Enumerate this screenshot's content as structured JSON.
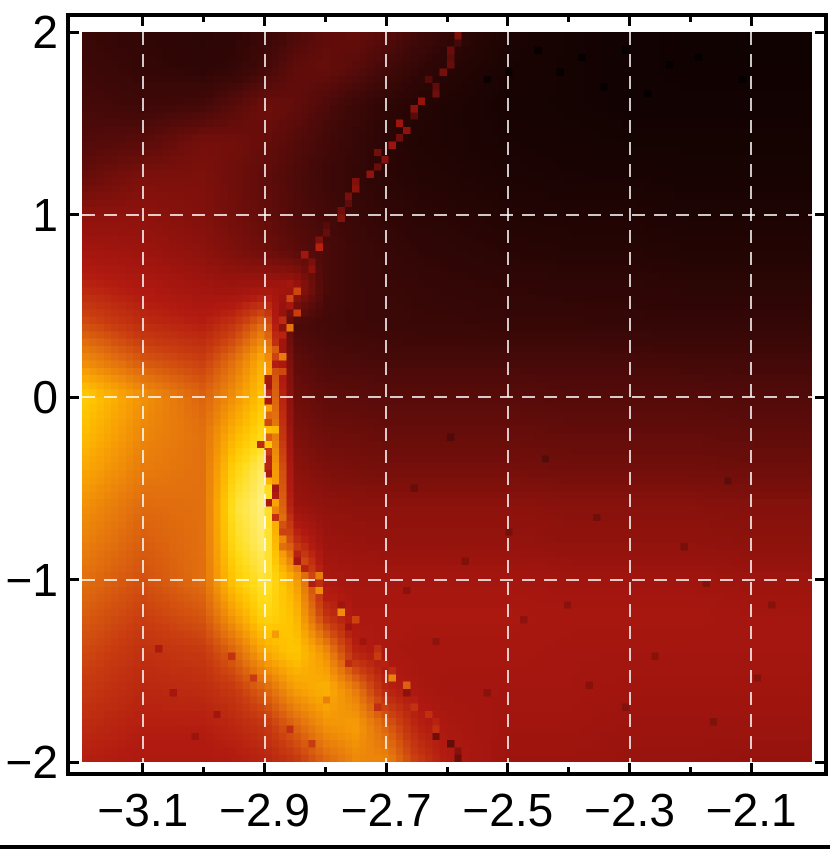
{
  "figure": {
    "background": "#ffffff",
    "frame_color": "#000000",
    "bottom_rule_color": "#000000"
  },
  "chart_data": {
    "type": "heatmap",
    "title": "",
    "xlabel": "",
    "ylabel": "",
    "xlim": [
      -3.2,
      -2.0
    ],
    "ylim": [
      -2,
      2
    ],
    "grid": true,
    "grid_color": "rgba(255,255,255,0.78)",
    "x_ticks": {
      "values": [
        -3.1,
        -2.9,
        -2.7,
        -2.5,
        -2.3,
        -2.1
      ],
      "labels": [
        "−3.1",
        "−2.9",
        "−2.7",
        "−2.5",
        "−2.3",
        "−2.1"
      ],
      "minor_values": [
        -3.0,
        -2.8,
        -2.6,
        -2.4,
        -2.2
      ]
    },
    "y_ticks": {
      "values": [
        2,
        1,
        0,
        -1,
        -2
      ],
      "labels": [
        "2",
        "1",
        "0",
        "−1",
        "−2"
      ],
      "minor_values": []
    },
    "grid_x_values": [
      -3.1,
      -2.9,
      -2.7,
      -2.5,
      -2.3,
      -2.1
    ],
    "grid_y_values": [
      1,
      0,
      -1
    ],
    "cells": 100,
    "colormap": [
      {
        "t": 0.0,
        "c": "#050000"
      },
      {
        "t": 0.08,
        "c": "#170302"
      },
      {
        "t": 0.16,
        "c": "#2e0605"
      },
      {
        "t": 0.24,
        "c": "#430908"
      },
      {
        "t": 0.32,
        "c": "#5f0c0a"
      },
      {
        "t": 0.4,
        "c": "#7d100b"
      },
      {
        "t": 0.48,
        "c": "#9d140e"
      },
      {
        "t": 0.54,
        "c": "#b11a10"
      },
      {
        "t": 0.62,
        "c": "#c93d10"
      },
      {
        "t": 0.7,
        "c": "#e2700e"
      },
      {
        "t": 0.78,
        "c": "#f79d05"
      },
      {
        "t": 0.85,
        "c": "#ffc400"
      },
      {
        "t": 0.9,
        "c": "#ffdb18"
      },
      {
        "t": 0.95,
        "c": "#ffea60"
      },
      {
        "t": 1.0,
        "c": "#fff8cc"
      }
    ],
    "intensity_grid": {
      "x": [
        -3.2,
        -3.1,
        -3.0,
        -2.95,
        -2.9,
        -2.85,
        -2.8,
        -2.75,
        -2.7,
        -2.65,
        -2.6,
        -2.5,
        -2.4,
        -2.3,
        -2.2,
        -2.1,
        -2.0
      ],
      "y": [
        2,
        1.8,
        1.6,
        1.4,
        1.2,
        1,
        0.8,
        0.6,
        0.4,
        0.2,
        0,
        -0.2,
        -0.4,
        -0.6,
        -0.8,
        -1,
        -1.2,
        -1.4,
        -1.6,
        -1.8,
        -2
      ],
      "values": [
        [
          0.2,
          0.17,
          0.15,
          0.16,
          0.2,
          0.26,
          0.32,
          0.34,
          0.3,
          0.24,
          0.18,
          0.1,
          0.07,
          0.06,
          0.05,
          0.05,
          0.05
        ],
        [
          0.22,
          0.18,
          0.16,
          0.18,
          0.24,
          0.32,
          0.34,
          0.3,
          0.24,
          0.18,
          0.14,
          0.09,
          0.07,
          0.06,
          0.05,
          0.05,
          0.05
        ],
        [
          0.25,
          0.22,
          0.24,
          0.3,
          0.36,
          0.33,
          0.27,
          0.21,
          0.16,
          0.13,
          0.11,
          0.08,
          0.07,
          0.06,
          0.06,
          0.06,
          0.06
        ],
        [
          0.28,
          0.3,
          0.38,
          0.37,
          0.34,
          0.29,
          0.24,
          0.19,
          0.15,
          0.12,
          0.11,
          0.09,
          0.08,
          0.07,
          0.07,
          0.07,
          0.07
        ],
        [
          0.34,
          0.4,
          0.4,
          0.36,
          0.32,
          0.27,
          0.22,
          0.18,
          0.15,
          0.13,
          0.12,
          0.1,
          0.09,
          0.09,
          0.08,
          0.08,
          0.08
        ],
        [
          0.44,
          0.44,
          0.41,
          0.37,
          0.33,
          0.28,
          0.24,
          0.2,
          0.17,
          0.15,
          0.14,
          0.12,
          0.11,
          0.11,
          0.1,
          0.1,
          0.1
        ],
        [
          0.5,
          0.48,
          0.44,
          0.4,
          0.36,
          0.31,
          0.26,
          0.22,
          0.19,
          0.17,
          0.16,
          0.14,
          0.13,
          0.13,
          0.12,
          0.12,
          0.12
        ],
        [
          0.57,
          0.53,
          0.49,
          0.48,
          0.5,
          0.5,
          0.26,
          0.22,
          0.2,
          0.19,
          0.18,
          0.17,
          0.16,
          0.16,
          0.15,
          0.15,
          0.15
        ],
        [
          0.65,
          0.58,
          0.55,
          0.6,
          0.7,
          0.26,
          0.24,
          0.22,
          0.21,
          0.2,
          0.2,
          0.19,
          0.19,
          0.18,
          0.18,
          0.18,
          0.18
        ],
        [
          0.75,
          0.66,
          0.62,
          0.7,
          0.82,
          0.32,
          0.27,
          0.26,
          0.25,
          0.25,
          0.25,
          0.25,
          0.25,
          0.25,
          0.24,
          0.24,
          0.24
        ],
        [
          0.87,
          0.76,
          0.68,
          0.76,
          0.86,
          0.36,
          0.32,
          0.31,
          0.3,
          0.3,
          0.3,
          0.3,
          0.29,
          0.29,
          0.29,
          0.28,
          0.28
        ],
        [
          0.84,
          0.74,
          0.7,
          0.82,
          0.9,
          0.4,
          0.36,
          0.35,
          0.34,
          0.34,
          0.34,
          0.34,
          0.33,
          0.33,
          0.33,
          0.32,
          0.32
        ],
        [
          0.8,
          0.72,
          0.7,
          0.88,
          0.96,
          0.44,
          0.4,
          0.39,
          0.38,
          0.38,
          0.38,
          0.38,
          0.37,
          0.37,
          0.37,
          0.36,
          0.36
        ],
        [
          0.76,
          0.69,
          0.7,
          0.92,
          0.97,
          0.48,
          0.45,
          0.44,
          0.44,
          0.44,
          0.44,
          0.44,
          0.43,
          0.43,
          0.43,
          0.42,
          0.42
        ],
        [
          0.73,
          0.67,
          0.7,
          0.9,
          0.96,
          0.6,
          0.48,
          0.47,
          0.46,
          0.46,
          0.46,
          0.46,
          0.45,
          0.45,
          0.45,
          0.44,
          0.44
        ],
        [
          0.7,
          0.65,
          0.7,
          0.86,
          0.93,
          0.8,
          0.52,
          0.5,
          0.5,
          0.5,
          0.5,
          0.5,
          0.49,
          0.49,
          0.49,
          0.48,
          0.48
        ],
        [
          0.67,
          0.62,
          0.66,
          0.78,
          0.89,
          0.84,
          0.6,
          0.52,
          0.52,
          0.52,
          0.52,
          0.52,
          0.51,
          0.51,
          0.51,
          0.5,
          0.5
        ],
        [
          0.64,
          0.59,
          0.61,
          0.68,
          0.8,
          0.86,
          0.76,
          0.56,
          0.52,
          0.51,
          0.51,
          0.51,
          0.5,
          0.5,
          0.5,
          0.5,
          0.5
        ],
        [
          0.61,
          0.57,
          0.58,
          0.61,
          0.68,
          0.78,
          0.82,
          0.72,
          0.56,
          0.52,
          0.5,
          0.5,
          0.5,
          0.49,
          0.49,
          0.49,
          0.49
        ],
        [
          0.58,
          0.55,
          0.55,
          0.57,
          0.6,
          0.68,
          0.76,
          0.78,
          0.68,
          0.56,
          0.52,
          0.49,
          0.49,
          0.48,
          0.48,
          0.48,
          0.48
        ],
        [
          0.55,
          0.53,
          0.53,
          0.54,
          0.56,
          0.6,
          0.68,
          0.74,
          0.74,
          0.62,
          0.54,
          0.48,
          0.48,
          0.47,
          0.47,
          0.46,
          0.46
        ]
      ]
    },
    "resonance_curve": {
      "points": [
        [
          2.0,
          -2.575,
          0.42
        ],
        [
          1.8,
          -2.602,
          0.45
        ],
        [
          1.6,
          -2.641,
          0.47
        ],
        [
          1.4,
          -2.684,
          0.49
        ],
        [
          1.2,
          -2.731,
          0.51
        ],
        [
          1.0,
          -2.776,
          0.53
        ],
        [
          0.8,
          -2.816,
          0.56
        ],
        [
          0.6,
          -2.846,
          0.63
        ],
        [
          0.4,
          -2.869,
          0.72
        ],
        [
          0.2,
          -2.884,
          0.8
        ],
        [
          0.0,
          -2.893,
          0.85
        ],
        [
          -0.2,
          -2.897,
          0.88
        ],
        [
          -0.4,
          -2.895,
          0.9
        ],
        [
          -0.6,
          -2.884,
          0.9
        ],
        [
          -0.8,
          -2.861,
          0.9
        ],
        [
          -1.0,
          -2.821,
          0.88
        ],
        [
          -1.2,
          -2.773,
          0.85
        ],
        [
          -1.4,
          -2.718,
          0.81
        ],
        [
          -1.6,
          -2.663,
          0.73
        ],
        [
          -1.8,
          -2.621,
          0.62
        ],
        [
          -2.0,
          -2.578,
          0.53
        ]
      ]
    },
    "noise_delta": -0.07,
    "noise_cells": [
      [
        50,
        3
      ],
      [
        55,
        6
      ],
      [
        62,
        2
      ],
      [
        68,
        3
      ],
      [
        74,
        2
      ],
      [
        80,
        4
      ],
      [
        65,
        5
      ],
      [
        71,
        7
      ],
      [
        58,
        5
      ],
      [
        84,
        3
      ],
      [
        90,
        6
      ],
      [
        77,
        8
      ],
      [
        12,
        90
      ],
      [
        18,
        93
      ],
      [
        23,
        88
      ],
      [
        28,
        95
      ],
      [
        33,
        91
      ],
      [
        20,
        85
      ],
      [
        26,
        82
      ],
      [
        15,
        96
      ],
      [
        36,
        86
      ],
      [
        40,
        92
      ],
      [
        10,
        84
      ],
      [
        31,
        97
      ],
      [
        45,
        62
      ],
      [
        52,
        72
      ],
      [
        60,
        80
      ],
      [
        70,
        66
      ],
      [
        78,
        85
      ],
      [
        85,
        75
      ],
      [
        92,
        88
      ],
      [
        55,
        90
      ],
      [
        48,
        83
      ],
      [
        88,
        61
      ],
      [
        66,
        78
      ],
      [
        74,
        92
      ],
      [
        58,
        68
      ],
      [
        82,
        70
      ],
      [
        94,
        78
      ],
      [
        50,
        55
      ],
      [
        63,
        58
      ],
      [
        86,
        94
      ],
      [
        44,
        76
      ],
      [
        69,
        89
      ]
    ]
  }
}
